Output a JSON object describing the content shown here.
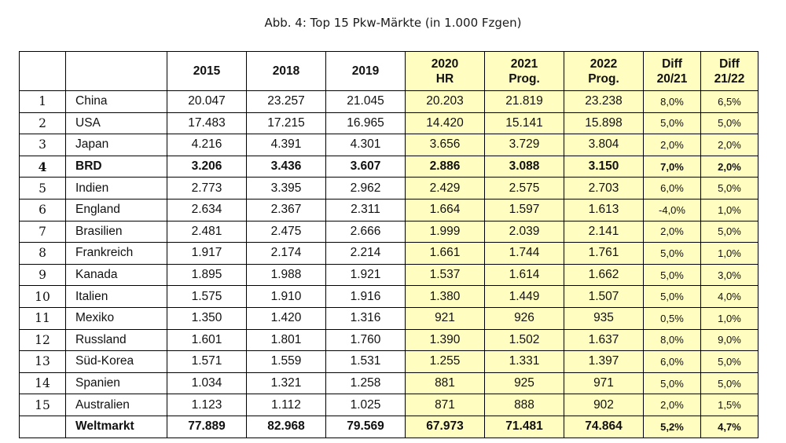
{
  "caption": "Abb. 4: Top 15 Pkw-Märkte (in 1.000 Fzgen)",
  "colors": {
    "forecast_highlight": "#fffdc0",
    "border": "#000000"
  },
  "table": {
    "headers": [
      {
        "l1": "",
        "l2": ""
      },
      {
        "l1": "",
        "l2": ""
      },
      {
        "l1": "2015",
        "l2": ""
      },
      {
        "l1": "2018",
        "l2": ""
      },
      {
        "l1": "2019",
        "l2": ""
      },
      {
        "l1": "2020",
        "l2": "HR"
      },
      {
        "l1": "2021",
        "l2": "Prog."
      },
      {
        "l1": "2022",
        "l2": "Prog."
      },
      {
        "l1": "Diff",
        "l2": "20/21"
      },
      {
        "l1": "Diff",
        "l2": "21/22"
      }
    ],
    "rows": [
      {
        "rank": "1",
        "country": "China",
        "v": [
          "20.047",
          "23.257",
          "21.045",
          "20.203",
          "21.819",
          "23.238",
          "8,0%",
          "6,5%"
        ]
      },
      {
        "rank": "2",
        "country": "USA",
        "v": [
          "17.483",
          "17.215",
          "16.965",
          "14.420",
          "15.141",
          "15.898",
          "5,0%",
          "5,0%"
        ]
      },
      {
        "rank": "3",
        "country": "Japan",
        "v": [
          "4.216",
          "4.391",
          "4.301",
          "3.656",
          "3.729",
          "3.804",
          "2,0%",
          "2,0%"
        ]
      },
      {
        "rank": "4",
        "country": "BRD",
        "v": [
          "3.206",
          "3.436",
          "3.607",
          "2.886",
          "3.088",
          "3.150",
          "7,0%",
          "2,0%"
        ]
      },
      {
        "rank": "5",
        "country": "Indien",
        "v": [
          "2.773",
          "3.395",
          "2.962",
          "2.429",
          "2.575",
          "2.703",
          "6,0%",
          "5,0%"
        ]
      },
      {
        "rank": "6",
        "country": "England",
        "v": [
          "2.634",
          "2.367",
          "2.311",
          "1.664",
          "1.597",
          "1.613",
          "-4,0%",
          "1,0%"
        ]
      },
      {
        "rank": "7",
        "country": "Brasilien",
        "v": [
          "2.481",
          "2.475",
          "2.666",
          "1.999",
          "2.039",
          "2.141",
          "2,0%",
          "5,0%"
        ]
      },
      {
        "rank": "8",
        "country": "Frankreich",
        "v": [
          "1.917",
          "2.174",
          "2.214",
          "1.661",
          "1.744",
          "1.761",
          "5,0%",
          "1,0%"
        ]
      },
      {
        "rank": "9",
        "country": "Kanada",
        "v": [
          "1.895",
          "1.988",
          "1.921",
          "1.537",
          "1.614",
          "1.662",
          "5,0%",
          "3,0%"
        ]
      },
      {
        "rank": "10",
        "country": "Italien",
        "v": [
          "1.575",
          "1.910",
          "1.916",
          "1.380",
          "1.449",
          "1.507",
          "5,0%",
          "4,0%"
        ]
      },
      {
        "rank": "11",
        "country": "Mexiko",
        "v": [
          "1.350",
          "1.420",
          "1.316",
          "921",
          "926",
          "935",
          "0,5%",
          "1,0%"
        ]
      },
      {
        "rank": "12",
        "country": "Russland",
        "v": [
          "1.601",
          "1.801",
          "1.760",
          "1.390",
          "1.502",
          "1.637",
          "8,0%",
          "9,0%"
        ]
      },
      {
        "rank": "13",
        "country": "Süd-Korea",
        "v": [
          "1.571",
          "1.559",
          "1.531",
          "1.255",
          "1.331",
          "1.397",
          "6,0%",
          "5,0%"
        ]
      },
      {
        "rank": "14",
        "country": "Spanien",
        "v": [
          "1.034",
          "1.321",
          "1.258",
          "881",
          "925",
          "971",
          "5,0%",
          "5,0%"
        ]
      },
      {
        "rank": "15",
        "country": "Australien",
        "v": [
          "1.123",
          "1.112",
          "1.025",
          "871",
          "888",
          "902",
          "2,0%",
          "1,5%"
        ]
      }
    ],
    "total": {
      "rank": "",
      "country": "Weltmarkt",
      "v": [
        "77.889",
        "82.968",
        "79.569",
        "67.973",
        "71.481",
        "74.864",
        "5,2%",
        "4,7%"
      ]
    }
  }
}
